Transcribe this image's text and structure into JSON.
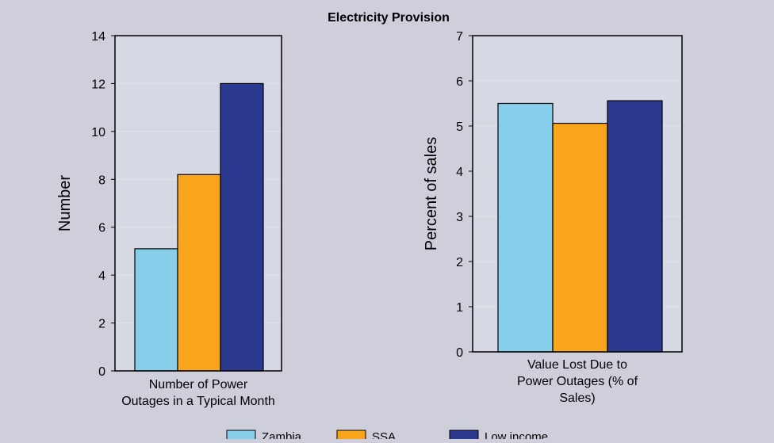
{
  "title": "Electricity Provision",
  "colors": {
    "background": "#cfcfdc",
    "plot_background": "#d6d8e3",
    "grid": "#e2e3ea",
    "border": "#000000"
  },
  "legend": {
    "placement": "bottom",
    "entries": [
      {
        "label": "Zambia",
        "color": "#87ceeb"
      },
      {
        "label": "SSA",
        "color": "#f8a51b"
      },
      {
        "label": "Low income",
        "color": "#2b3990"
      }
    ]
  },
  "chart_data": [
    {
      "type": "bar",
      "categories": [
        "Number of Power Outages in a Typical Month"
      ],
      "category_label_lines": [
        "Number of Power",
        "Outages in a Typical Month"
      ],
      "series": [
        {
          "name": "Zambia",
          "values": [
            5.1
          ]
        },
        {
          "name": "SSA",
          "values": [
            8.2
          ]
        },
        {
          "name": "Low income",
          "values": [
            12.0
          ]
        }
      ],
      "ylabel": "Number",
      "ylim": [
        0,
        14
      ],
      "yticks": [
        0,
        2,
        4,
        6,
        8,
        10,
        12,
        14
      ],
      "grid": true
    },
    {
      "type": "bar",
      "categories": [
        "Value Lost Due to Power Outages (% of Sales)"
      ],
      "category_label_lines": [
        "Value Lost Due to",
        "Power Outages (% of",
        "Sales)"
      ],
      "series": [
        {
          "name": "Zambia",
          "values": [
            5.5
          ]
        },
        {
          "name": "SSA",
          "values": [
            5.06
          ]
        },
        {
          "name": "Low income",
          "values": [
            5.56
          ]
        }
      ],
      "ylabel": "Percent of sales",
      "ylim": [
        0,
        7
      ],
      "yticks": [
        0,
        1,
        2,
        3,
        4,
        5,
        6,
        7
      ],
      "grid": true
    }
  ]
}
